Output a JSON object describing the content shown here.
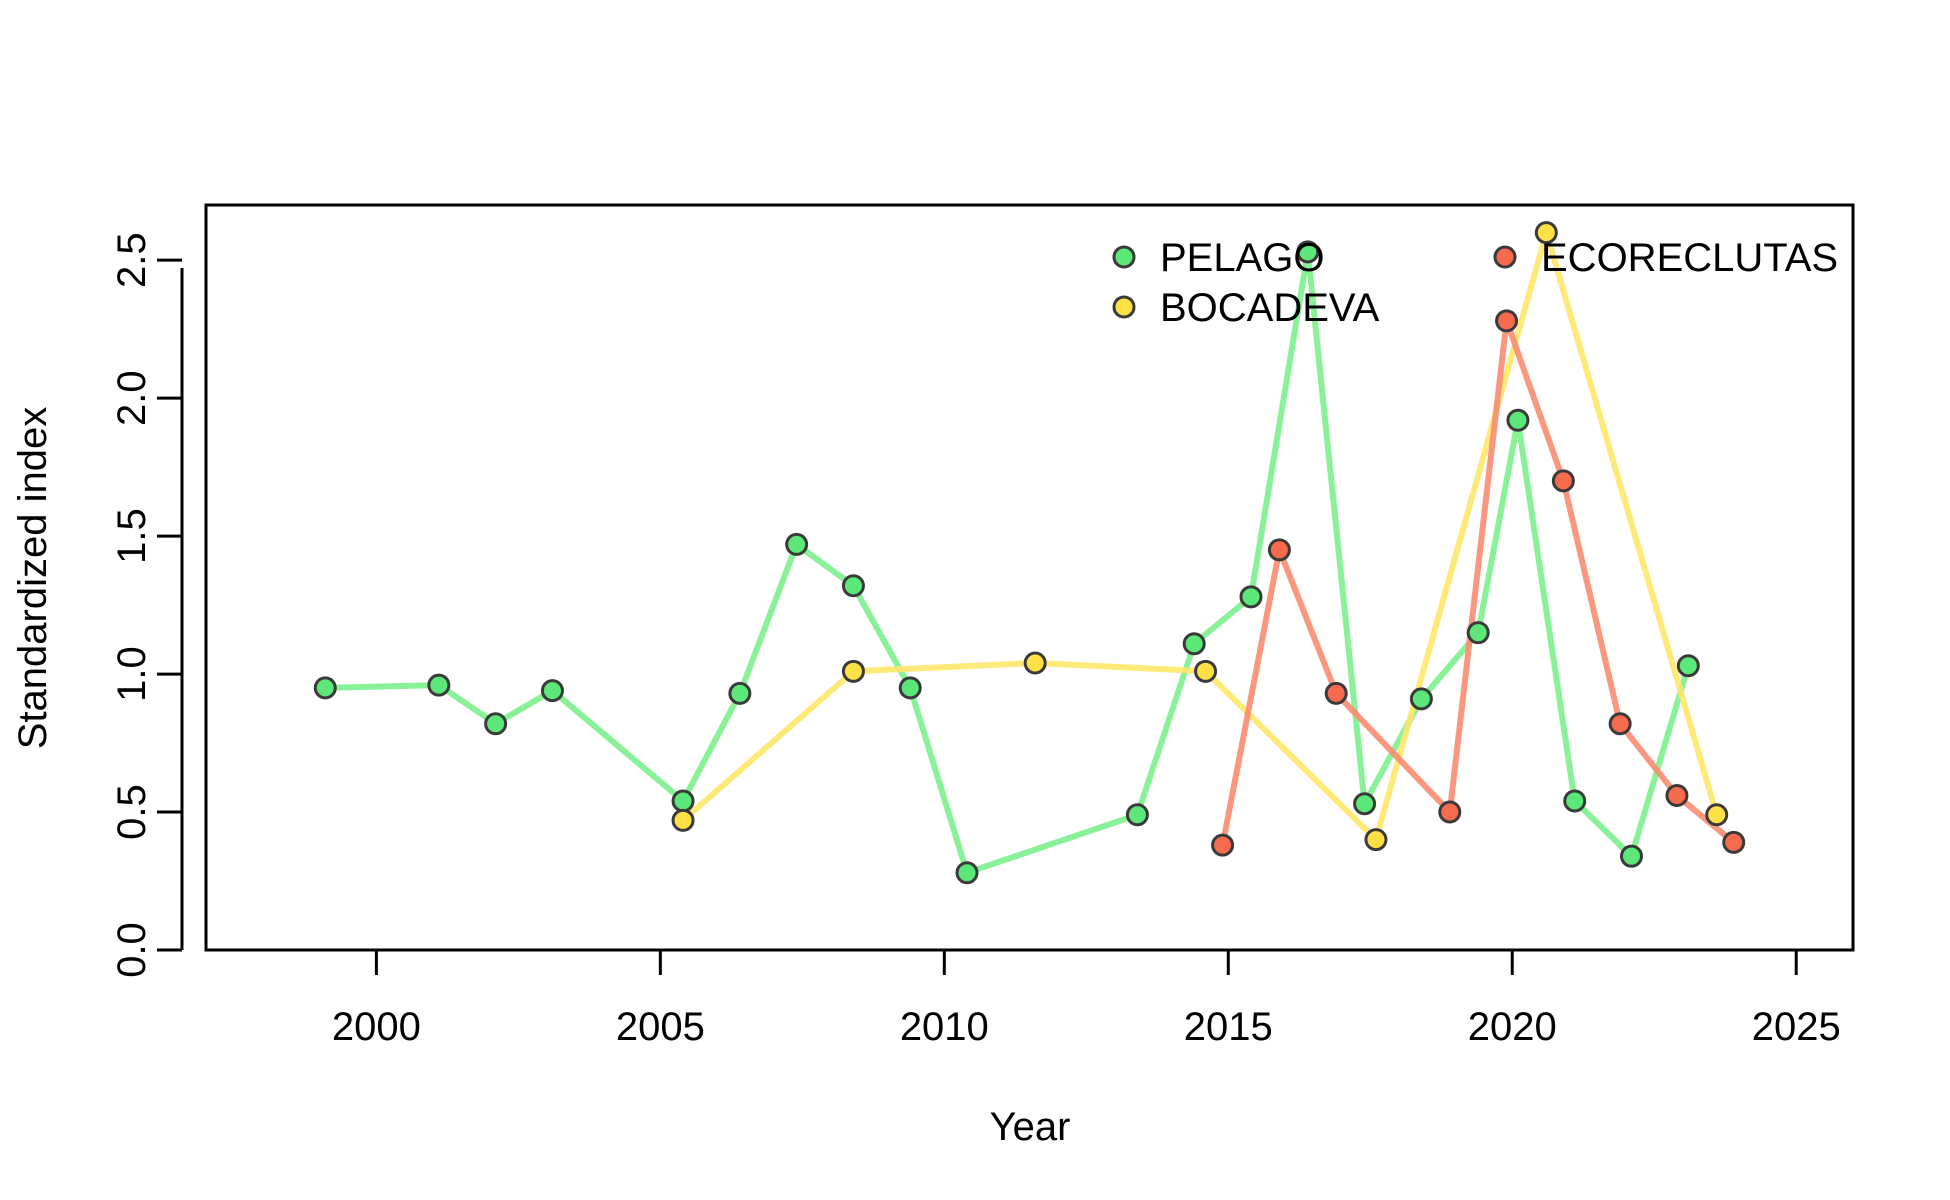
{
  "chart_data": {
    "type": "line",
    "xlabel": "Year",
    "ylabel": "Standardized index",
    "xlim": [
      1997,
      2026
    ],
    "ylim": [
      0,
      2.7
    ],
    "x_ticks": [
      2000,
      2005,
      2010,
      2015,
      2020,
      2025
    ],
    "y_ticks": [
      0.0,
      0.5,
      1.0,
      1.5,
      2.0,
      2.5
    ],
    "x_tick_labels": [
      "2000",
      "2005",
      "2010",
      "2015",
      "2020",
      "2025"
    ],
    "y_tick_labels": [
      "0.0",
      "0.5",
      "1.0",
      "1.5",
      "2.0",
      "2.5"
    ],
    "grid": false,
    "legend_position": "top-right",
    "series": [
      {
        "name": "PELAGO",
        "line_color": "#7CF08C",
        "point_color": "#5CE878",
        "points": [
          [
            1999.1,
            0.95
          ],
          [
            2001.1,
            0.96
          ],
          [
            2002.1,
            0.82
          ],
          [
            2003.1,
            0.94
          ],
          [
            2005.4,
            0.54
          ],
          [
            2006.4,
            0.93
          ],
          [
            2007.4,
            1.47
          ],
          [
            2008.4,
            1.32
          ],
          [
            2009.4,
            0.95
          ],
          [
            2010.4,
            0.28
          ],
          [
            2013.4,
            0.49
          ],
          [
            2014.4,
            1.11
          ],
          [
            2015.4,
            1.28
          ],
          [
            2016.4,
            2.53
          ],
          [
            2017.4,
            0.53
          ],
          [
            2018.4,
            0.91
          ],
          [
            2019.4,
            1.15
          ],
          [
            2020.1,
            1.92
          ],
          [
            2021.1,
            0.54
          ],
          [
            2022.1,
            0.34
          ],
          [
            2023.1,
            1.03
          ]
        ]
      },
      {
        "name": "BOCADEVA",
        "line_color": "#FFE76A",
        "point_color": "#FFE045",
        "points": [
          [
            2005.4,
            0.47
          ],
          [
            2008.4,
            1.01
          ],
          [
            2011.6,
            1.04
          ],
          [
            2014.6,
            1.01
          ],
          [
            2017.6,
            0.4
          ],
          [
            2020.6,
            2.6
          ],
          [
            2023.6,
            0.49
          ]
        ]
      },
      {
        "name": "ECORECLUTAS",
        "line_color": "#F98C70",
        "point_color": "#F66B4E",
        "points": [
          [
            2014.9,
            0.38
          ],
          [
            2015.9,
            1.45
          ],
          [
            2016.9,
            0.93
          ],
          [
            2018.9,
            0.5
          ],
          [
            2019.9,
            2.28
          ],
          [
            2020.9,
            1.7
          ],
          [
            2021.9,
            0.82
          ],
          [
            2022.9,
            0.56
          ],
          [
            2023.9,
            0.39
          ]
        ]
      }
    ]
  }
}
